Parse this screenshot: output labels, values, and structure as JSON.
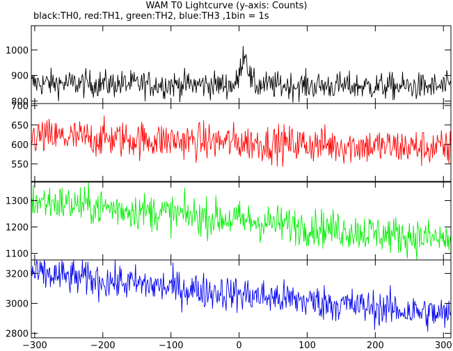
{
  "title": "WAM T0 Lightcurve (y-axis: Counts)",
  "subtitle": "black:TH0, red:TH1, green:TH2, blue:TH3 ,1bin = 1s",
  "chart_data": {
    "type": "line",
    "x_axis": {
      "range": [
        -305,
        311
      ],
      "ticks": [
        -300,
        -200,
        -100,
        0,
        100,
        200,
        300
      ],
      "bin_seconds": 1
    },
    "panels": [
      {
        "name": "TH0",
        "color": "#000000",
        "ylim": [
          790,
          1095
        ],
        "yticks": [
          800,
          900,
          1000
        ],
        "baseline_start": 870,
        "baseline_end": 855,
        "noise": 27,
        "peak": {
          "x": 8,
          "height": 130,
          "width": 7
        }
      },
      {
        "name": "TH1",
        "color": "#ff0000",
        "ylim": [
          505,
          705
        ],
        "yticks": [
          550,
          600,
          650,
          700
        ],
        "baseline_start": 620,
        "baseline_end": 590,
        "noise": 24,
        "peak": null
      },
      {
        "name": "TH2",
        "color": "#00ee00",
        "ylim": [
          1075,
          1370
        ],
        "yticks": [
          1100,
          1200,
          1300
        ],
        "baseline_start": 1300,
        "baseline_end": 1150,
        "noise": 36,
        "peak": null
      },
      {
        "name": "TH3",
        "color": "#0000ee",
        "ylim": [
          2770,
          3290
        ],
        "yticks": [
          2800,
          3000,
          3200
        ],
        "baseline_start": 3200,
        "baseline_end": 2920,
        "noise": 60,
        "peak": null
      }
    ]
  }
}
